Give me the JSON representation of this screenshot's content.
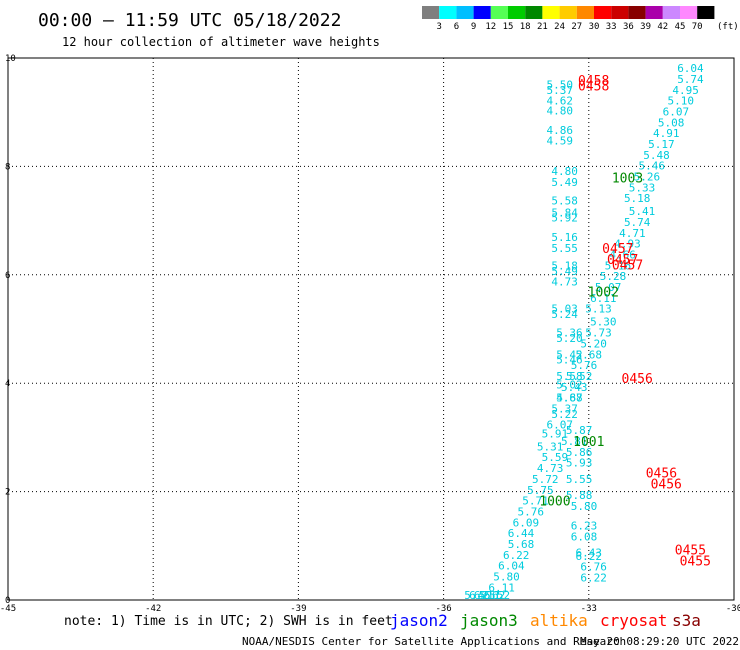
{
  "header": {
    "title": "00:00 – 11:59 UTC 05/18/2022",
    "subtitle": "12 hour collection of altimeter wave heights"
  },
  "colorbar": {
    "labels": [
      "3",
      "6",
      "9",
      "12",
      "15",
      "18",
      "21",
      "24",
      "27",
      "30",
      "33",
      "36",
      "39",
      "42",
      "45",
      "70"
    ],
    "unit": "(ft)",
    "colors": [
      "#7f7f7f",
      "#00ffff",
      "#00bfff",
      "#0000ff",
      "#55ff55",
      "#00cc00",
      "#008800",
      "#ffff00",
      "#ffcc00",
      "#ff8800",
      "#ff0000",
      "#cc0000",
      "#880000",
      "#aa00aa",
      "#cc88ff",
      "#ff88ff",
      "#000000"
    ]
  },
  "footer": {
    "note": "note: 1) Time is in UTC; 2) SWH is in feet",
    "credit": "NOAA/NESDIS Center for Satellite Applications and Research",
    "timestamp": "May 20 08:29:20 UTC 2022"
  },
  "legend": [
    {
      "label": "jason2",
      "color": "#0000ff"
    },
    {
      "label": "jason3",
      "color": "#008800"
    },
    {
      "label": "altika",
      "color": "#ff8800"
    },
    {
      "label": "cryosat",
      "color": "#ff0000"
    },
    {
      "label": "s3a",
      "color": "#880000"
    }
  ],
  "chart_data": {
    "type": "scatter",
    "xlim": [
      -45,
      -30
    ],
    "ylim": [
      0,
      10
    ],
    "xticks": [
      "-45",
      "-42",
      "-39",
      "-36",
      "-33",
      "-30"
    ],
    "yticks": [
      "0",
      "2",
      "4",
      "6",
      "8",
      "10"
    ],
    "grid": true,
    "value_color": "#00ccdd",
    "points": [
      {
        "x": -30.9,
        "y": 9.74,
        "v": "6.04"
      },
      {
        "x": -30.9,
        "y": 9.54,
        "v": "5.74"
      },
      {
        "x": -31.0,
        "y": 9.34,
        "v": "4.95"
      },
      {
        "x": -31.1,
        "y": 9.14,
        "v": "5.10"
      },
      {
        "x": -31.2,
        "y": 8.94,
        "v": "6.07"
      },
      {
        "x": -31.3,
        "y": 8.74,
        "v": "5.08"
      },
      {
        "x": -31.4,
        "y": 8.54,
        "v": "4.91"
      },
      {
        "x": -31.5,
        "y": 8.34,
        "v": "5.17"
      },
      {
        "x": -31.6,
        "y": 8.14,
        "v": "5.48"
      },
      {
        "x": -31.7,
        "y": 7.94,
        "v": "5.46"
      },
      {
        "x": -31.8,
        "y": 7.74,
        "v": "5.26"
      },
      {
        "x": -31.9,
        "y": 7.54,
        "v": "5.33"
      },
      {
        "x": -32.0,
        "y": 7.34,
        "v": "5.18"
      },
      {
        "x": -31.9,
        "y": 7.1,
        "v": "5.41"
      },
      {
        "x": -32.0,
        "y": 6.9,
        "v": "5.74"
      },
      {
        "x": -32.1,
        "y": 6.7,
        "v": "4.71"
      },
      {
        "x": -32.2,
        "y": 6.5,
        "v": "4.93"
      },
      {
        "x": -32.3,
        "y": 6.3,
        "v": "4.66"
      },
      {
        "x": -32.4,
        "y": 6.1,
        "v": "5.16"
      },
      {
        "x": -32.5,
        "y": 5.9,
        "v": "5.28"
      },
      {
        "x": -32.6,
        "y": 5.7,
        "v": "5.07"
      },
      {
        "x": -32.7,
        "y": 5.5,
        "v": "6.11"
      },
      {
        "x": -32.8,
        "y": 5.3,
        "v": "5.13"
      },
      {
        "x": -32.7,
        "y": 5.06,
        "v": "5.30"
      },
      {
        "x": -32.8,
        "y": 4.86,
        "v": "5.73"
      },
      {
        "x": -32.9,
        "y": 4.66,
        "v": "5.20"
      },
      {
        "x": -33.0,
        "y": 4.46,
        "v": "5.68"
      },
      {
        "x": -33.1,
        "y": 4.26,
        "v": "5.76"
      },
      {
        "x": -33.2,
        "y": 4.06,
        "v": "5.52"
      },
      {
        "x": -33.3,
        "y": 3.86,
        "v": "5.43"
      },
      {
        "x": -33.4,
        "y": 3.66,
        "v": "5.67"
      },
      {
        "x": -33.5,
        "y": 3.46,
        "v": "5.37"
      },
      {
        "x": -33.2,
        "y": 3.06,
        "v": "5.87"
      },
      {
        "x": -33.3,
        "y": 2.86,
        "v": "5.81"
      },
      {
        "x": -33.2,
        "y": 2.66,
        "v": "5.86"
      },
      {
        "x": -33.2,
        "y": 2.46,
        "v": "5.93"
      },
      {
        "x": -33.2,
        "y": 2.16,
        "v": "5.55"
      },
      {
        "x": -33.2,
        "y": 1.86,
        "v": "5.88"
      },
      {
        "x": -33.1,
        "y": 1.66,
        "v": "5.80"
      },
      {
        "x": -33.1,
        "y": 1.3,
        "v": "6.23"
      },
      {
        "x": -33.1,
        "y": 1.1,
        "v": "6.08"
      },
      {
        "x": -33.0,
        "y": 0.8,
        "v": "6.43"
      },
      {
        "x": -33.0,
        "y": 0.74,
        "v": "6.22"
      },
      {
        "x": -32.9,
        "y": 0.54,
        "v": "6.76"
      },
      {
        "x": -32.9,
        "y": 0.34,
        "v": "6.22"
      },
      {
        "x": -33.6,
        "y": 9.44,
        "v": "5.50"
      },
      {
        "x": -33.6,
        "y": 9.34,
        "v": "5.37"
      },
      {
        "x": -33.6,
        "y": 9.14,
        "v": "4.62"
      },
      {
        "x": -33.6,
        "y": 8.96,
        "v": "4.80"
      },
      {
        "x": -33.6,
        "y": 8.6,
        "v": "4.86"
      },
      {
        "x": -33.6,
        "y": 8.4,
        "v": "4.59"
      },
      {
        "x": -33.5,
        "y": 7.84,
        "v": "4.80"
      },
      {
        "x": -33.5,
        "y": 7.64,
        "v": "5.49"
      },
      {
        "x": -33.5,
        "y": 7.3,
        "v": "5.58"
      },
      {
        "x": -33.5,
        "y": 7.08,
        "v": "5.84"
      },
      {
        "x": -33.5,
        "y": 6.98,
        "v": "5.92"
      },
      {
        "x": -33.5,
        "y": 6.62,
        "v": "5.16"
      },
      {
        "x": -33.5,
        "y": 6.42,
        "v": "5.55"
      },
      {
        "x": -33.5,
        "y": 6.1,
        "v": "5.18"
      },
      {
        "x": -33.5,
        "y": 6.0,
        "v": "5.49"
      },
      {
        "x": -33.5,
        "y": 5.8,
        "v": "4.73"
      },
      {
        "x": -33.5,
        "y": 5.3,
        "v": "5.03"
      },
      {
        "x": -33.5,
        "y": 5.2,
        "v": "5.24"
      },
      {
        "x": -33.4,
        "y": 4.86,
        "v": "5.36"
      },
      {
        "x": -33.4,
        "y": 4.76,
        "v": "5.20"
      },
      {
        "x": -33.4,
        "y": 4.46,
        "v": "5.42"
      },
      {
        "x": -33.4,
        "y": 4.36,
        "v": "5.46"
      },
      {
        "x": -33.4,
        "y": 4.06,
        "v": "5.58"
      },
      {
        "x": -33.4,
        "y": 3.9,
        "v": "5.02"
      },
      {
        "x": -33.4,
        "y": 3.66,
        "v": "4.88"
      },
      {
        "x": -33.5,
        "y": 3.36,
        "v": "5.22"
      },
      {
        "x": -33.6,
        "y": 3.16,
        "v": "6.07"
      },
      {
        "x": -33.7,
        "y": 3.0,
        "v": "5.91"
      },
      {
        "x": -33.8,
        "y": 2.76,
        "v": "5.31"
      },
      {
        "x": -33.7,
        "y": 2.56,
        "v": "5.59"
      },
      {
        "x": -33.8,
        "y": 2.36,
        "v": "4.73"
      },
      {
        "x": -33.9,
        "y": 2.16,
        "v": "5.72"
      },
      {
        "x": -34.0,
        "y": 1.96,
        "v": "5.75"
      },
      {
        "x": -34.1,
        "y": 1.76,
        "v": "5.71"
      },
      {
        "x": -34.2,
        "y": 1.56,
        "v": "5.76"
      },
      {
        "x": -34.3,
        "y": 1.36,
        "v": "6.09"
      },
      {
        "x": -34.4,
        "y": 1.16,
        "v": "6.44"
      },
      {
        "x": -34.4,
        "y": 0.96,
        "v": "5.68"
      },
      {
        "x": -34.5,
        "y": 0.76,
        "v": "6.22"
      },
      {
        "x": -34.6,
        "y": 0.56,
        "v": "6.04"
      },
      {
        "x": -34.7,
        "y": 0.36,
        "v": "5.80"
      },
      {
        "x": -34.8,
        "y": 0.16,
        "v": "6.11"
      },
      {
        "x": -34.9,
        "y": -0.04,
        "v": "6.52"
      },
      {
        "x": -35.0,
        "y": -0.24,
        "v": "5.62"
      },
      {
        "x": -35.1,
        "y": -0.44,
        "v": "6.11"
      },
      {
        "x": -35.2,
        "y": -0.64,
        "v": "6.25"
      },
      {
        "x": -35.3,
        "y": -0.84,
        "v": "5.45"
      }
    ],
    "time_labels": [
      {
        "x": -32.2,
        "y": 7.7,
        "text": "1003",
        "color": "#008800"
      },
      {
        "x": -32.7,
        "y": 5.6,
        "text": "1002",
        "color": "#008800"
      },
      {
        "x": -33.0,
        "y": 2.84,
        "text": "1001",
        "color": "#008800"
      },
      {
        "x": -33.7,
        "y": 1.74,
        "text": "1000",
        "color": "#008800"
      },
      {
        "x": -32.9,
        "y": 9.5,
        "text": "0458",
        "color": "#ff0000"
      },
      {
        "x": -32.9,
        "y": 9.4,
        "text": "0458",
        "color": "#ff0000"
      },
      {
        "x": -32.4,
        "y": 6.4,
        "text": "0457",
        "color": "#ff0000"
      },
      {
        "x": -32.3,
        "y": 6.2,
        "text": "0457",
        "color": "#ff0000"
      },
      {
        "x": -32.2,
        "y": 6.1,
        "text": "0457",
        "color": "#ff0000"
      },
      {
        "x": -32.0,
        "y": 4.0,
        "text": "0456",
        "color": "#ff0000"
      },
      {
        "x": -31.5,
        "y": 2.26,
        "text": "0456",
        "color": "#ff0000"
      },
      {
        "x": -31.4,
        "y": 2.06,
        "text": "0456",
        "color": "#ff0000"
      },
      {
        "x": -30.9,
        "y": 0.84,
        "text": "0455",
        "color": "#ff0000"
      },
      {
        "x": -30.8,
        "y": 0.64,
        "text": "0455",
        "color": "#ff0000"
      }
    ]
  }
}
